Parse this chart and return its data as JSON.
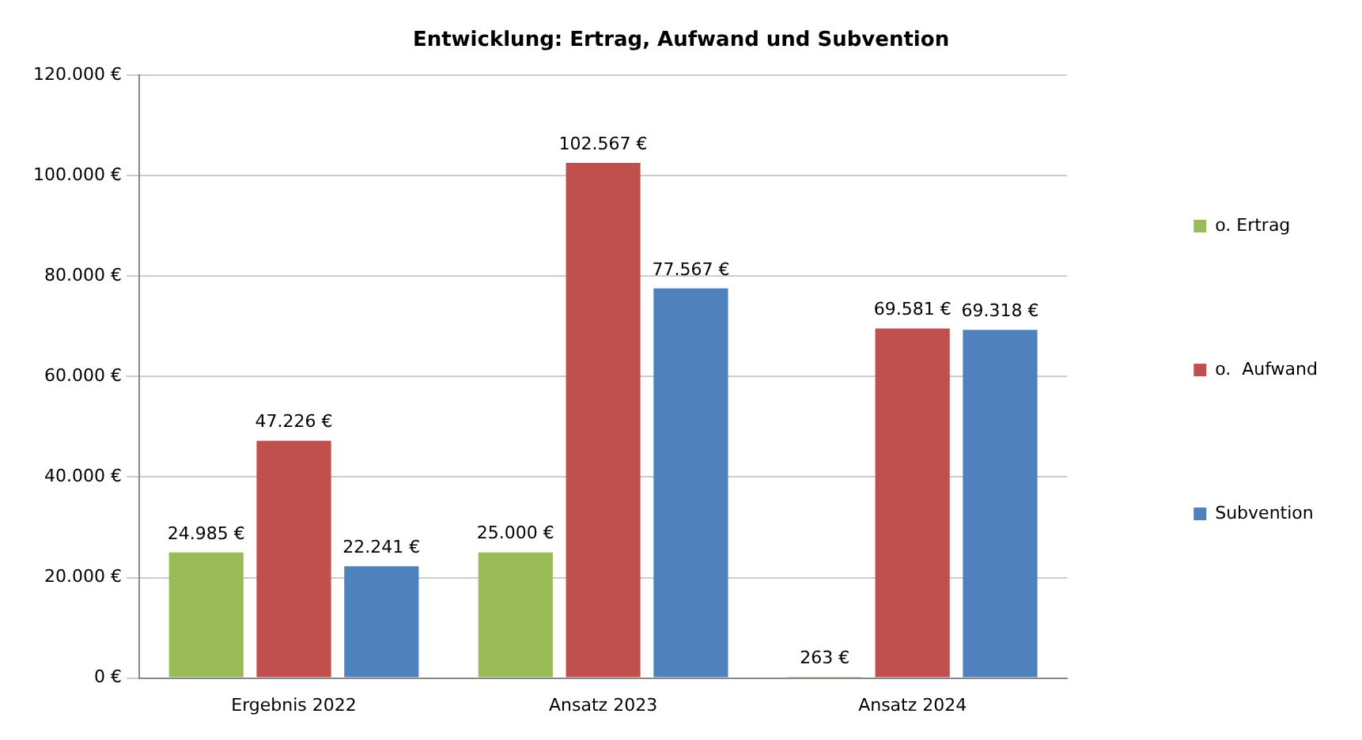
{
  "chart_data": {
    "type": "bar",
    "title": "Entwicklung: Ertrag, Aufwand und Subvention",
    "categories": [
      "Ergebnis 2022",
      "Ansatz 2023",
      "Ansatz 2024"
    ],
    "series": [
      {
        "name": "o. Ertrag",
        "color": "#9bbb59",
        "values": [
          24985,
          25000,
          263
        ],
        "value_labels": [
          "24.985 €",
          "25.000 €",
          "263 €"
        ]
      },
      {
        "name": "o.  Aufwand",
        "color": "#c0504d",
        "values": [
          47226,
          102567,
          69581
        ],
        "value_labels": [
          "47.226 €",
          "102.567 €",
          "69.581 €"
        ]
      },
      {
        "name": "Subvention",
        "color": "#4f81bd",
        "values": [
          22241,
          77567,
          69318
        ],
        "value_labels": [
          "22.241 €",
          "77.567 €",
          "69.318 €"
        ]
      }
    ],
    "ylim": [
      0,
      120000
    ],
    "yticks": [
      {
        "value": 0,
        "label": "0 €"
      },
      {
        "value": 20000,
        "label": "20.000 €"
      },
      {
        "value": 40000,
        "label": "40.000 €"
      },
      {
        "value": 60000,
        "label": "60.000 €"
      },
      {
        "value": 80000,
        "label": "80.000 €"
      },
      {
        "value": 100000,
        "label": "100.000 €"
      },
      {
        "value": 120000,
        "label": "120.000 €"
      }
    ],
    "grid": "y",
    "legend": "right"
  }
}
